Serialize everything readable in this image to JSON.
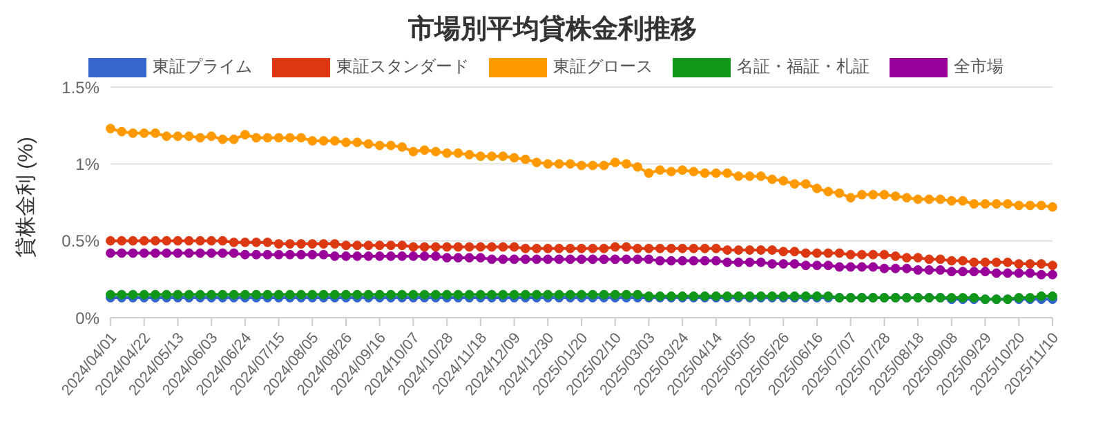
{
  "chart_data": {
    "type": "line",
    "title": "市場別平均貸株金利推移",
    "ylabel": "貸株金利 (%)",
    "categories": [
      "2024/04/01",
      null,
      null,
      "2024/04/22",
      null,
      null,
      "2024/05/13",
      null,
      null,
      "2024/06/03",
      null,
      null,
      "2024/06/24",
      null,
      null,
      "2024/07/15",
      null,
      null,
      "2024/08/05",
      null,
      null,
      "2024/08/26",
      null,
      null,
      "2024/09/16",
      null,
      null,
      "2024/10/07",
      null,
      null,
      "2024/10/28",
      null,
      null,
      "2024/11/18",
      null,
      null,
      "2024/12/09",
      null,
      null,
      "2024/12/30",
      null,
      null,
      "2025/01/20",
      null,
      null,
      "2025/02/10",
      null,
      null,
      "2025/03/03",
      null,
      null,
      "2025/03/24",
      null,
      null,
      "2025/04/14",
      null,
      null,
      "2025/05/05",
      null,
      null,
      "2025/05/26",
      null,
      null,
      "2025/06/16",
      null,
      null,
      "2025/07/07",
      null,
      null,
      "2025/07/28",
      null,
      null,
      "2025/08/18",
      null,
      null,
      "2025/09/08",
      null,
      null,
      "2025/09/29",
      null,
      null,
      "2025/10/20",
      null,
      null,
      "2025/11/10"
    ],
    "series": [
      {
        "name": "東証プライム",
        "color": "#3366cc",
        "values": [
          0.13,
          0.13,
          0.13,
          0.13,
          0.13,
          0.13,
          0.13,
          0.13,
          0.13,
          0.13,
          0.13,
          0.13,
          0.13,
          0.13,
          0.13,
          0.13,
          0.13,
          0.13,
          0.13,
          0.13,
          0.13,
          0.13,
          0.13,
          0.13,
          0.13,
          0.13,
          0.13,
          0.13,
          0.13,
          0.13,
          0.13,
          0.13,
          0.13,
          0.13,
          0.13,
          0.13,
          0.13,
          0.13,
          0.13,
          0.13,
          0.13,
          0.13,
          0.13,
          0.13,
          0.13,
          0.13,
          0.13,
          0.13,
          0.13,
          0.13,
          0.13,
          0.13,
          0.13,
          0.13,
          0.13,
          0.13,
          0.13,
          0.13,
          0.13,
          0.13,
          0.13,
          0.13,
          0.13,
          0.13,
          0.13,
          0.13,
          0.13,
          0.13,
          0.13,
          0.13,
          0.13,
          0.13,
          0.13,
          0.13,
          0.13,
          0.12,
          0.12,
          0.12,
          0.12,
          0.12,
          0.12,
          0.12,
          0.12,
          0.12,
          0.12
        ]
      },
      {
        "name": "東証スタンダード",
        "color": "#dc3912",
        "values": [
          0.5,
          0.5,
          0.5,
          0.5,
          0.5,
          0.5,
          0.5,
          0.5,
          0.5,
          0.5,
          0.5,
          0.49,
          0.49,
          0.49,
          0.49,
          0.48,
          0.48,
          0.48,
          0.48,
          0.48,
          0.48,
          0.47,
          0.47,
          0.47,
          0.47,
          0.47,
          0.47,
          0.46,
          0.46,
          0.46,
          0.46,
          0.46,
          0.46,
          0.46,
          0.46,
          0.46,
          0.46,
          0.45,
          0.45,
          0.45,
          0.45,
          0.45,
          0.45,
          0.45,
          0.45,
          0.46,
          0.46,
          0.45,
          0.45,
          0.45,
          0.45,
          0.45,
          0.45,
          0.45,
          0.45,
          0.44,
          0.44,
          0.44,
          0.44,
          0.44,
          0.43,
          0.43,
          0.42,
          0.42,
          0.42,
          0.42,
          0.41,
          0.41,
          0.41,
          0.41,
          0.4,
          0.39,
          0.39,
          0.38,
          0.38,
          0.37,
          0.37,
          0.36,
          0.36,
          0.36,
          0.36,
          0.35,
          0.35,
          0.35,
          0.34
        ]
      },
      {
        "name": "東証グロース",
        "color": "#ff9900",
        "values": [
          1.23,
          1.21,
          1.2,
          1.2,
          1.2,
          1.18,
          1.18,
          1.18,
          1.17,
          1.18,
          1.16,
          1.16,
          1.19,
          1.17,
          1.17,
          1.17,
          1.17,
          1.17,
          1.15,
          1.15,
          1.15,
          1.14,
          1.14,
          1.13,
          1.12,
          1.12,
          1.11,
          1.08,
          1.09,
          1.08,
          1.07,
          1.07,
          1.06,
          1.05,
          1.05,
          1.05,
          1.04,
          1.03,
          1.01,
          1.0,
          1.0,
          1.0,
          0.99,
          0.99,
          0.99,
          1.01,
          1.0,
          0.98,
          0.94,
          0.96,
          0.95,
          0.96,
          0.95,
          0.94,
          0.94,
          0.94,
          0.92,
          0.92,
          0.92,
          0.9,
          0.89,
          0.87,
          0.87,
          0.84,
          0.82,
          0.81,
          0.78,
          0.8,
          0.8,
          0.8,
          0.79,
          0.78,
          0.77,
          0.77,
          0.77,
          0.76,
          0.76,
          0.74,
          0.74,
          0.74,
          0.74,
          0.73,
          0.73,
          0.73,
          0.72
        ]
      },
      {
        "name": "名証・福証・札証",
        "color": "#109618",
        "values": [
          0.15,
          0.15,
          0.15,
          0.15,
          0.15,
          0.15,
          0.15,
          0.15,
          0.15,
          0.15,
          0.15,
          0.15,
          0.15,
          0.15,
          0.15,
          0.15,
          0.15,
          0.15,
          0.15,
          0.15,
          0.15,
          0.15,
          0.15,
          0.15,
          0.15,
          0.15,
          0.15,
          0.15,
          0.15,
          0.15,
          0.15,
          0.15,
          0.15,
          0.15,
          0.15,
          0.15,
          0.15,
          0.15,
          0.15,
          0.15,
          0.15,
          0.15,
          0.15,
          0.15,
          0.15,
          0.15,
          0.15,
          0.15,
          0.14,
          0.14,
          0.14,
          0.14,
          0.14,
          0.14,
          0.14,
          0.14,
          0.14,
          0.14,
          0.14,
          0.14,
          0.14,
          0.14,
          0.14,
          0.14,
          0.14,
          0.13,
          0.13,
          0.13,
          0.13,
          0.13,
          0.13,
          0.13,
          0.13,
          0.13,
          0.13,
          0.13,
          0.13,
          0.13,
          0.12,
          0.12,
          0.12,
          0.13,
          0.13,
          0.14,
          0.14
        ]
      },
      {
        "name": "全市場",
        "color": "#990099",
        "values": [
          0.42,
          0.42,
          0.42,
          0.42,
          0.42,
          0.42,
          0.42,
          0.42,
          0.42,
          0.42,
          0.42,
          0.42,
          0.41,
          0.41,
          0.41,
          0.41,
          0.41,
          0.41,
          0.41,
          0.41,
          0.4,
          0.4,
          0.4,
          0.4,
          0.4,
          0.4,
          0.4,
          0.4,
          0.4,
          0.4,
          0.39,
          0.39,
          0.39,
          0.39,
          0.38,
          0.38,
          0.38,
          0.38,
          0.38,
          0.38,
          0.38,
          0.38,
          0.38,
          0.38,
          0.38,
          0.38,
          0.38,
          0.38,
          0.38,
          0.37,
          0.37,
          0.37,
          0.37,
          0.37,
          0.37,
          0.36,
          0.36,
          0.36,
          0.36,
          0.35,
          0.35,
          0.35,
          0.34,
          0.34,
          0.34,
          0.33,
          0.33,
          0.33,
          0.33,
          0.32,
          0.32,
          0.32,
          0.31,
          0.31,
          0.31,
          0.3,
          0.3,
          0.3,
          0.3,
          0.29,
          0.29,
          0.29,
          0.29,
          0.28,
          0.28
        ]
      }
    ],
    "ylim": [
      0,
      1.5
    ],
    "yticks": [
      {
        "value": 0,
        "label": "0%"
      },
      {
        "value": 0.5,
        "label": "0.5%"
      },
      {
        "value": 1,
        "label": "1%"
      },
      {
        "value": 1.5,
        "label": "1.5%"
      }
    ],
    "grid": "y",
    "legend": "top",
    "marker": "circle"
  }
}
